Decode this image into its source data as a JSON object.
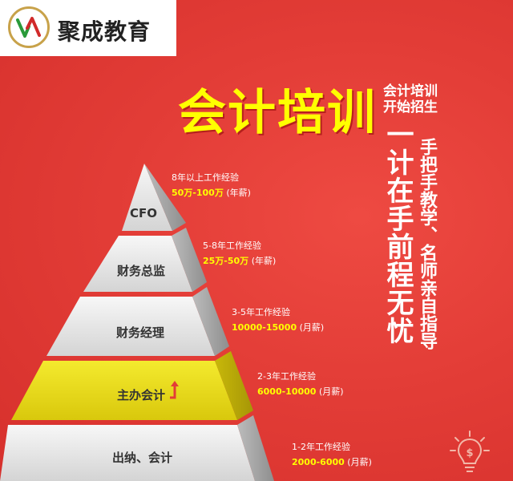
{
  "brand": {
    "name": "聚成教育",
    "badge_text": "聚成教育",
    "badge_url": "jcedu.com"
  },
  "headline": {
    "title": "会计培训",
    "sub_line1": "会计培训",
    "sub_line2": "开始招生",
    "slogan": "一计在手前程无忧",
    "tagline": "手把手教学、名师亲自指导"
  },
  "pyramid": [
    {
      "title": "CFO",
      "experience": "8年以上工作经验",
      "salary": "50万-100万",
      "unit": "(年薪)"
    },
    {
      "title": "财务总监",
      "experience": "5-8年工作经验",
      "salary": "25万-50万",
      "unit": "(年薪)"
    },
    {
      "title": "财务经理",
      "experience": "3-5年工作经验",
      "salary": "10000-15000",
      "unit": "(月薪)"
    },
    {
      "title": "主办会计",
      "experience": "2-3年工作经验",
      "salary": "6000-10000",
      "unit": "(月薪)"
    },
    {
      "title": "出纳、会计",
      "experience": "1-2年工作经验",
      "salary": "2000-6000",
      "unit": "(月薪)"
    }
  ],
  "colors": {
    "background": "#e33d37",
    "headline": "#ffff00",
    "highlight_tier": "#f0e020",
    "tier": "#e8e8e8"
  },
  "icons": {
    "highlight_marker": "arrow-up-icon",
    "decoration": "lightbulb-dollar-icon"
  }
}
